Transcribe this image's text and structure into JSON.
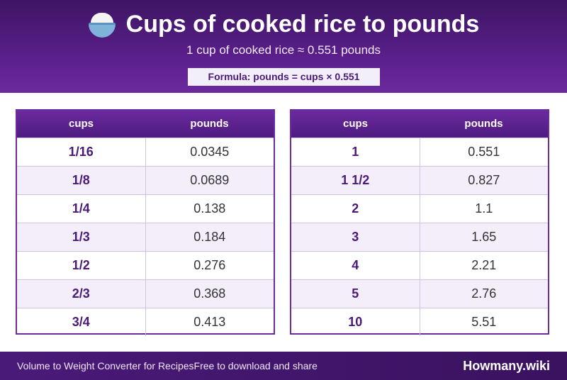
{
  "header": {
    "title": "Cups of cooked rice to pounds",
    "icon": "rice-bowl-icon",
    "subtitle": "1 cup of cooked rice ≈ 0.551 pounds",
    "formula": "Formula: pounds = cups × 0.551"
  },
  "tables": [
    {
      "headers": {
        "cups": "cups",
        "pounds": "pounds"
      },
      "rows": [
        {
          "cups": "1/16",
          "pounds": "0.0345"
        },
        {
          "cups": "1/8",
          "pounds": "0.0689"
        },
        {
          "cups": "1/4",
          "pounds": "0.138"
        },
        {
          "cups": "1/3",
          "pounds": "0.184"
        },
        {
          "cups": "1/2",
          "pounds": "0.276"
        },
        {
          "cups": "2/3",
          "pounds": "0.368"
        },
        {
          "cups": "3/4",
          "pounds": "0.413"
        }
      ]
    },
    {
      "headers": {
        "cups": "cups",
        "pounds": "pounds"
      },
      "rows": [
        {
          "cups": "1",
          "pounds": "0.551"
        },
        {
          "cups": "1 1/2",
          "pounds": "0.827"
        },
        {
          "cups": "2",
          "pounds": "1.1"
        },
        {
          "cups": "3",
          "pounds": "1.65"
        },
        {
          "cups": "4",
          "pounds": "2.21"
        },
        {
          "cups": "5",
          "pounds": "2.76"
        },
        {
          "cups": "10",
          "pounds": "5.51"
        }
      ]
    }
  ],
  "footer": {
    "left_text": "Volume to Weight Converter for RecipesFree to download and share",
    "brand": "Howmany.wiki"
  },
  "colors": {
    "primary": "#5a1f8a",
    "dark": "#3d1563",
    "row_alt": "#f3eefa"
  }
}
